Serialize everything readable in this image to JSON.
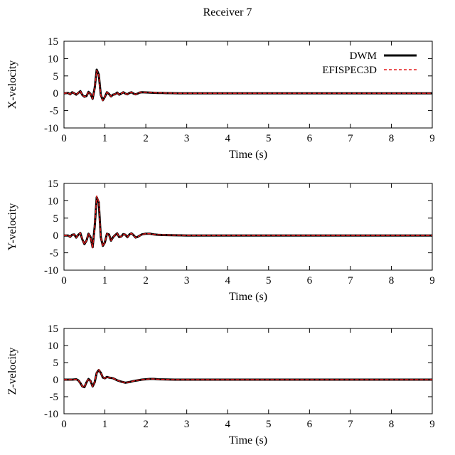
{
  "figure": {
    "title": "Receiver 7"
  },
  "chart_data": [
    {
      "type": "line",
      "xlabel": "Time (s)",
      "ylabel": "X-velocity",
      "xlim": [
        0,
        9
      ],
      "ylim": [
        -10,
        15
      ],
      "xticks": [
        0,
        1,
        2,
        3,
        4,
        5,
        6,
        7,
        8,
        9
      ],
      "yticks": [
        -10,
        -5,
        0,
        5,
        10,
        15
      ],
      "grid": false,
      "legend": {
        "placement": "top-right",
        "entries": [
          "DWM",
          "EFISPEC3D"
        ]
      },
      "series": [
        {
          "name": "DWM",
          "color": "#000000",
          "dash": "solid",
          "x": [
            0,
            0.1,
            0.15,
            0.2,
            0.25,
            0.3,
            0.35,
            0.4,
            0.45,
            0.5,
            0.55,
            0.6,
            0.65,
            0.7,
            0.75,
            0.8,
            0.85,
            0.9,
            0.95,
            1.0,
            1.05,
            1.1,
            1.15,
            1.2,
            1.25,
            1.3,
            1.35,
            1.4,
            1.45,
            1.5,
            1.55,
            1.6,
            1.65,
            1.7,
            1.75,
            1.8,
            1.85,
            1.9,
            2.0,
            2.1,
            2.2,
            2.3,
            2.4,
            2.5,
            2.6,
            2.8,
            3.0,
            3.5,
            4.0,
            5.0,
            6.0,
            7.0,
            8.0,
            9.0
          ],
          "y": [
            0,
            0.1,
            -0.3,
            0.3,
            0.0,
            -0.4,
            0.1,
            0.6,
            -0.5,
            -1.0,
            -0.8,
            0.4,
            -0.2,
            -1.6,
            1.5,
            6.8,
            5.4,
            -0.5,
            -2.0,
            -1.0,
            0.3,
            -0.2,
            -0.9,
            -0.4,
            -0.3,
            0.2,
            -0.4,
            -0.1,
            0.3,
            -0.1,
            -0.3,
            0.1,
            0.3,
            -0.1,
            -0.3,
            -0.1,
            0.2,
            0.3,
            0.25,
            0.2,
            0.15,
            0.1,
            0.1,
            0.05,
            0.05,
            0.0,
            0.0,
            0.0,
            0.0,
            0.0,
            0.0,
            0.0,
            0.0,
            0.0
          ]
        },
        {
          "name": "EFISPEC3D",
          "color": "#e41a1c",
          "dash": "dashed",
          "x": [
            0,
            0.1,
            0.15,
            0.2,
            0.25,
            0.3,
            0.35,
            0.4,
            0.45,
            0.5,
            0.55,
            0.6,
            0.65,
            0.7,
            0.75,
            0.8,
            0.85,
            0.9,
            0.95,
            1.0,
            1.05,
            1.1,
            1.15,
            1.2,
            1.25,
            1.3,
            1.35,
            1.4,
            1.45,
            1.5,
            1.55,
            1.6,
            1.65,
            1.7,
            1.75,
            1.8,
            1.85,
            1.9,
            2.0,
            2.1,
            2.2,
            2.3,
            2.4,
            2.5,
            2.6,
            2.8,
            3.0,
            3.5,
            4.0,
            5.0,
            6.0,
            7.0,
            8.0,
            9.0
          ],
          "y": [
            0,
            0.1,
            -0.3,
            0.3,
            0.0,
            -0.4,
            0.1,
            0.6,
            -0.5,
            -1.0,
            -0.8,
            0.4,
            -0.2,
            -1.6,
            1.5,
            6.6,
            5.2,
            -0.6,
            -2.1,
            -1.0,
            0.3,
            -0.2,
            -0.9,
            -0.4,
            -0.3,
            0.2,
            -0.4,
            -0.1,
            0.3,
            -0.1,
            -0.3,
            0.1,
            0.3,
            -0.1,
            -0.3,
            -0.1,
            0.2,
            0.3,
            0.25,
            0.2,
            0.15,
            0.1,
            0.1,
            0.05,
            0.05,
            0.0,
            0.0,
            0.0,
            0.0,
            0.0,
            0.0,
            0.0,
            0.0,
            0.0
          ]
        }
      ]
    },
    {
      "type": "line",
      "xlabel": "Time (s)",
      "ylabel": "Y-velocity",
      "xlim": [
        0,
        9
      ],
      "ylim": [
        -10,
        15
      ],
      "xticks": [
        0,
        1,
        2,
        3,
        4,
        5,
        6,
        7,
        8,
        9
      ],
      "yticks": [
        -10,
        -5,
        0,
        5,
        10,
        15
      ],
      "grid": false,
      "series": [
        {
          "name": "DWM",
          "color": "#000000",
          "dash": "solid",
          "x": [
            0,
            0.1,
            0.15,
            0.2,
            0.25,
            0.3,
            0.35,
            0.4,
            0.45,
            0.5,
            0.55,
            0.6,
            0.65,
            0.7,
            0.75,
            0.8,
            0.85,
            0.9,
            0.95,
            1.0,
            1.05,
            1.1,
            1.15,
            1.2,
            1.25,
            1.3,
            1.35,
            1.4,
            1.45,
            1.5,
            1.55,
            1.6,
            1.65,
            1.7,
            1.75,
            1.8,
            1.9,
            2.0,
            2.1,
            2.2,
            2.3,
            2.4,
            2.6,
            2.8,
            3.0,
            3.5,
            4.0,
            5.0,
            6.0,
            7.0,
            8.0,
            9.0
          ],
          "y": [
            0,
            0.0,
            -0.4,
            0.2,
            0.3,
            -0.6,
            0.2,
            0.7,
            -1.2,
            -2.5,
            -1.5,
            0.5,
            -0.5,
            -3.4,
            2.5,
            11.0,
            9.5,
            -0.5,
            -3.0,
            -2.0,
            0.5,
            0.3,
            -1.5,
            -0.5,
            0.1,
            0.6,
            -0.5,
            -0.3,
            0.4,
            0.2,
            -0.5,
            0.3,
            0.6,
            0.1,
            -0.6,
            -0.4,
            0.3,
            0.5,
            0.5,
            0.3,
            0.2,
            0.15,
            0.1,
            0.05,
            0.0,
            0.0,
            0.0,
            0.0,
            0.0,
            0.0,
            0.0,
            0.0
          ]
        },
        {
          "name": "EFISPEC3D",
          "color": "#e41a1c",
          "dash": "dashed",
          "x": [
            0,
            0.1,
            0.15,
            0.2,
            0.25,
            0.3,
            0.35,
            0.4,
            0.45,
            0.5,
            0.55,
            0.6,
            0.65,
            0.7,
            0.75,
            0.8,
            0.85,
            0.9,
            0.95,
            1.0,
            1.05,
            1.1,
            1.15,
            1.2,
            1.25,
            1.3,
            1.35,
            1.4,
            1.45,
            1.5,
            1.55,
            1.6,
            1.65,
            1.7,
            1.75,
            1.8,
            1.9,
            2.0,
            2.1,
            2.2,
            2.3,
            2.4,
            2.6,
            2.8,
            3.0,
            3.5,
            4.0,
            5.0,
            6.0,
            7.0,
            8.0,
            9.0
          ],
          "y": [
            0,
            0.0,
            -0.4,
            0.2,
            0.3,
            -0.6,
            0.2,
            0.7,
            -1.2,
            -2.5,
            -1.5,
            0.5,
            -0.5,
            -3.6,
            2.4,
            11.4,
            9.7,
            -0.6,
            -3.1,
            -2.0,
            0.5,
            0.3,
            -1.5,
            -0.5,
            0.1,
            0.6,
            -0.5,
            -0.3,
            0.4,
            0.2,
            -0.5,
            0.3,
            0.6,
            0.1,
            -0.6,
            -0.4,
            0.3,
            0.5,
            0.5,
            0.3,
            0.2,
            0.15,
            0.1,
            0.05,
            0.0,
            0.0,
            0.0,
            0.0,
            0.0,
            0.0,
            0.0,
            0.0
          ]
        }
      ]
    },
    {
      "type": "line",
      "xlabel": "Time (s)",
      "ylabel": "Z-velocity",
      "xlim": [
        0,
        9
      ],
      "ylim": [
        -10,
        15
      ],
      "xticks": [
        0,
        1,
        2,
        3,
        4,
        5,
        6,
        7,
        8,
        9
      ],
      "yticks": [
        -10,
        -5,
        0,
        5,
        10,
        15
      ],
      "grid": false,
      "series": [
        {
          "name": "DWM",
          "color": "#000000",
          "dash": "solid",
          "x": [
            0,
            0.2,
            0.3,
            0.35,
            0.4,
            0.45,
            0.5,
            0.55,
            0.6,
            0.65,
            0.7,
            0.75,
            0.8,
            0.85,
            0.9,
            0.95,
            1.0,
            1.05,
            1.1,
            1.2,
            1.3,
            1.4,
            1.5,
            1.6,
            1.7,
            1.8,
            1.9,
            2.0,
            2.1,
            2.2,
            2.3,
            2.5,
            2.7,
            3.0,
            3.5,
            4.0,
            5.0,
            6.0,
            7.0,
            8.0,
            9.0
          ],
          "y": [
            0,
            0.0,
            0.1,
            -0.2,
            -1.0,
            -2.0,
            -2.2,
            -0.8,
            0.2,
            -0.4,
            -2.0,
            -0.8,
            2.0,
            2.8,
            2.0,
            0.6,
            0.4,
            0.8,
            0.6,
            0.4,
            -0.2,
            -0.6,
            -0.9,
            -0.7,
            -0.4,
            -0.2,
            0.0,
            0.1,
            0.2,
            0.2,
            0.1,
            0.05,
            0.0,
            0.0,
            0.0,
            0.0,
            0.0,
            0.0,
            0.0,
            0.0,
            0.0
          ]
        },
        {
          "name": "EFISPEC3D",
          "color": "#e41a1c",
          "dash": "dashed",
          "x": [
            0,
            0.2,
            0.3,
            0.35,
            0.4,
            0.45,
            0.5,
            0.55,
            0.6,
            0.65,
            0.7,
            0.75,
            0.8,
            0.85,
            0.9,
            0.95,
            1.0,
            1.05,
            1.1,
            1.2,
            1.3,
            1.4,
            1.5,
            1.6,
            1.7,
            1.8,
            1.9,
            2.0,
            2.1,
            2.2,
            2.3,
            2.5,
            2.7,
            3.0,
            3.5,
            4.0,
            5.0,
            6.0,
            7.0,
            8.0,
            9.0
          ],
          "y": [
            0,
            0.0,
            0.1,
            -0.2,
            -1.0,
            -2.0,
            -2.2,
            -0.8,
            0.2,
            -0.4,
            -2.0,
            -0.8,
            2.1,
            2.9,
            2.0,
            0.6,
            0.4,
            0.8,
            0.6,
            0.4,
            -0.2,
            -0.6,
            -0.9,
            -0.7,
            -0.4,
            -0.2,
            0.0,
            0.1,
            0.2,
            0.2,
            0.1,
            0.05,
            0.0,
            0.0,
            0.0,
            0.0,
            0.0,
            0.0,
            0.0,
            0.0,
            0.0
          ]
        }
      ]
    }
  ]
}
